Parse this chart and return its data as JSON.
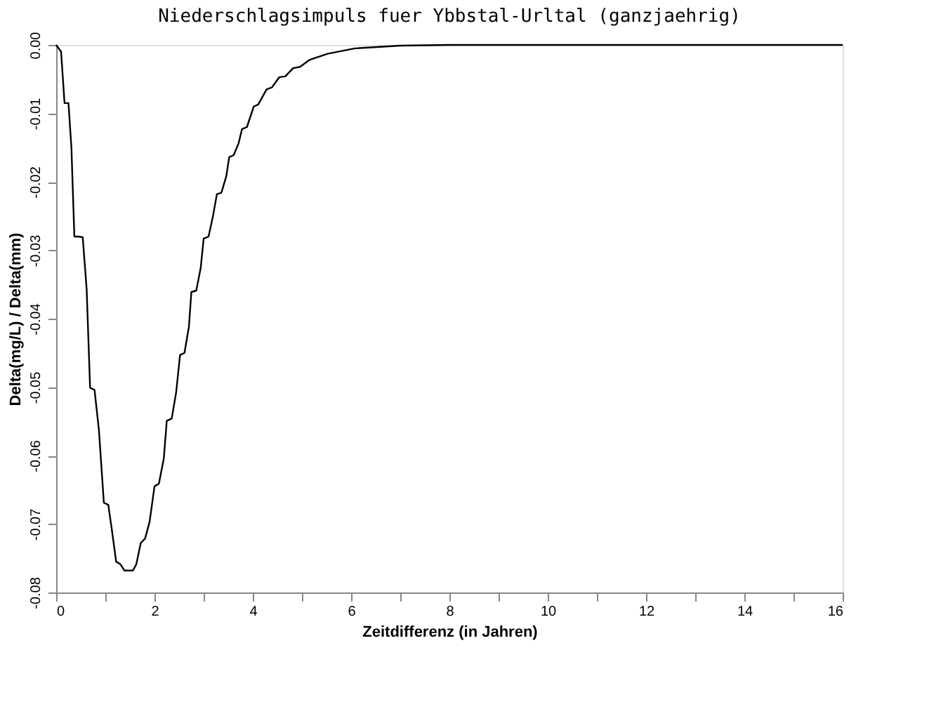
{
  "chart_data": {
    "type": "line",
    "title": "Niederschlagsimpuls fuer Ybbstal-Urltal (ganzjaehrig)",
    "xlabel": "Zeitdifferenz (in Jahren)",
    "ylabel": "Delta(mg/L) / Delta(mm)",
    "x": [
      0,
      0.1,
      0.17,
      0.25,
      0.31,
      0.37,
      0.45,
      0.54,
      0.62,
      0.69,
      0.78,
      0.87,
      0.97,
      1.06,
      1.13,
      1.22,
      1.31,
      1.39,
      1.56,
      1.63,
      1.72,
      1.81,
      1.9,
      2.0,
      2.09,
      2.19,
      2.25,
      2.35,
      2.44,
      2.52,
      2.61,
      2.7,
      2.75,
      2.85,
      2.94,
      3.0,
      3.1,
      3.19,
      3.27,
      3.36,
      3.46,
      3.52,
      3.61,
      3.71,
      3.78,
      3.88,
      4.02,
      4.11,
      4.28,
      4.39,
      4.54,
      4.66,
      4.82,
      4.96,
      5.15,
      5.52,
      6.08,
      7.0,
      8.0,
      16.0
    ],
    "series": [
      {
        "color": "#000000",
        "values": [
          0,
          -0.001,
          -0.0085,
          -0.0085,
          -0.015,
          -0.028,
          -0.028,
          -0.0281,
          -0.0357,
          -0.0501,
          -0.0504,
          -0.0563,
          -0.0669,
          -0.0672,
          -0.0707,
          -0.0755,
          -0.0759,
          -0.0768,
          -0.0768,
          -0.0759,
          -0.0728,
          -0.0721,
          -0.0697,
          -0.0645,
          -0.0641,
          -0.0604,
          -0.0549,
          -0.0546,
          -0.0508,
          -0.0453,
          -0.045,
          -0.0412,
          -0.0361,
          -0.0359,
          -0.0326,
          -0.0283,
          -0.028,
          -0.025,
          -0.0218,
          -0.0216,
          -0.0192,
          -0.0164,
          -0.0161,
          -0.0144,
          -0.0123,
          -0.012,
          -0.009,
          -0.0087,
          -0.0065,
          -0.0062,
          -0.0047,
          -0.0046,
          -0.0034,
          -0.0032,
          -0.0022,
          -0.0013,
          -0.0005,
          -0.0001,
          0,
          0
        ]
      }
    ],
    "xlim": [
      0,
      16
    ],
    "xticks": [
      0,
      {
        "value": 1,
        "label": null
      },
      2,
      {
        "value": 3,
        "label": null
      },
      4,
      {
        "value": 5,
        "label": null
      },
      6,
      {
        "value": 7,
        "label": null
      },
      8,
      {
        "value": 9,
        "label": null
      },
      10,
      {
        "value": 11,
        "label": null
      },
      12,
      {
        "value": 13,
        "label": null
      },
      14,
      {
        "value": 15,
        "label": null
      },
      16
    ],
    "ylim": [
      -0.08,
      0
    ],
    "yticks": [
      {
        "value": 0,
        "label": "0.00"
      },
      {
        "value": -0.01,
        "label": "-0.01"
      },
      {
        "value": -0.02,
        "label": "-0.02"
      },
      {
        "value": -0.03,
        "label": "-0.03"
      },
      {
        "value": -0.04,
        "label": "-0.04"
      },
      {
        "value": -0.05,
        "label": "-0.05"
      },
      {
        "value": -0.06,
        "label": "-0.06"
      },
      {
        "value": -0.07,
        "label": "-0.07"
      },
      {
        "value": -0.08,
        "label": "-0.08"
      }
    ],
    "grid": false,
    "marker": "none",
    "line_style": "solid"
  }
}
